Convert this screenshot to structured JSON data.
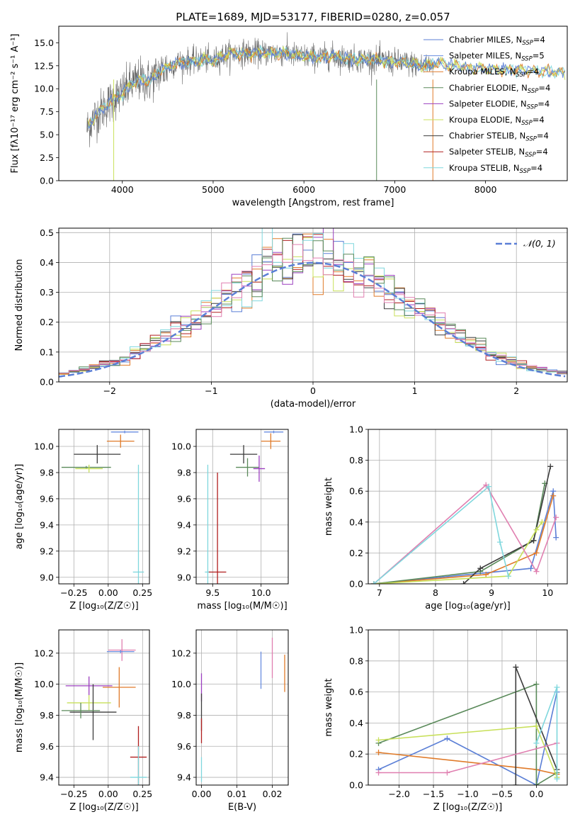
{
  "colors": {
    "chabrier_miles": "#5b7fd6",
    "salpeter_miles": "#6a8ee0",
    "kroupa_miles": "#e07b2a",
    "chabrier_elodie": "#5a8a5a",
    "salpeter_elodie": "#9b3fbf",
    "kroupa_elodie": "#c8e05a",
    "chabrier_stelib": "#3c3c3c",
    "salpeter_stelib": "#b01e1e",
    "kroupa_stelib": "#7fd7dd",
    "pink": "#e07fb0",
    "data_grey": "#707070"
  },
  "chart_data": [
    {
      "id": "spectrum",
      "type": "line",
      "title": "PLATE=1689, MJD=53177, FIBERID=0280, z=0.057",
      "xlabel": "wavelength [Angstrom, rest frame]",
      "ylabel": "Flux [fλ10⁻¹⁷ erg cm⁻² s⁻¹ A⁻¹]",
      "xlim": [
        3300,
        8900
      ],
      "ylim": [
        0,
        16.8
      ],
      "xticks": [
        4000,
        5000,
        6000,
        7000,
        8000
      ],
      "yticks": [
        0.0,
        2.5,
        5.0,
        7.5,
        10.0,
        12.5,
        15.0
      ],
      "grid": false,
      "legend_position": "top-right",
      "legend": [
        "Chabrier MILES, N_SSP=4",
        "Salpeter MILES, N_SSP=5",
        "Kroupa MILES, N_SSP=4",
        "Chabrier ELODIE, N_SSP=4",
        "Salpeter ELODIE, N_SSP=4",
        "Kroupa ELODIE, N_SSP=4",
        "Chabrier STELIB, N_SSP=4",
        "Salpeter STELIB, N_SSP=4",
        "Kroupa STELIB, N_SSP=4"
      ],
      "continuum": [
        [
          3600,
          5.5
        ],
        [
          3700,
          7.0
        ],
        [
          3800,
          8.0
        ],
        [
          3900,
          8.8
        ],
        [
          4000,
          9.5
        ],
        [
          4100,
          10.5
        ],
        [
          4200,
          11.0
        ],
        [
          4300,
          10.8
        ],
        [
          4400,
          11.8
        ],
        [
          4500,
          12.3
        ],
        [
          4600,
          12.8
        ],
        [
          4700,
          13.0
        ],
        [
          4800,
          13.0
        ],
        [
          4900,
          13.2
        ],
        [
          5000,
          13.0
        ],
        [
          5100,
          13.6
        ],
        [
          5200,
          13.8
        ],
        [
          5300,
          13.9
        ],
        [
          5400,
          13.9
        ],
        [
          5500,
          13.9
        ],
        [
          5600,
          13.9
        ],
        [
          5700,
          13.9
        ],
        [
          5800,
          13.9
        ],
        [
          5900,
          13.6
        ],
        [
          6000,
          13.5
        ],
        [
          6100,
          13.5
        ],
        [
          6200,
          13.4
        ],
        [
          6300,
          13.6
        ],
        [
          6400,
          13.4
        ],
        [
          6500,
          13.3
        ],
        [
          6600,
          13.2
        ],
        [
          6700,
          13.2
        ],
        [
          6800,
          13.1
        ],
        [
          6900,
          13.0
        ],
        [
          7000,
          12.9
        ],
        [
          7100,
          12.8
        ],
        [
          7200,
          12.7
        ],
        [
          7300,
          12.5
        ],
        [
          7400,
          12.6
        ],
        [
          7500,
          12.8
        ],
        [
          7600,
          12.4
        ],
        [
          7700,
          12.5
        ],
        [
          7800,
          12.3
        ],
        [
          7900,
          12.2
        ],
        [
          8000,
          12.2
        ],
        [
          8100,
          12.1
        ],
        [
          8200,
          12.1
        ],
        [
          8300,
          12.0
        ],
        [
          8400,
          12.0
        ],
        [
          8500,
          12.0
        ],
        [
          8600,
          11.9
        ],
        [
          8700,
          11.9
        ],
        [
          8800,
          11.8
        ]
      ]
    },
    {
      "id": "residuals",
      "type": "line",
      "xlabel": "(data-model)/error",
      "ylabel": "Normed distribution",
      "xlim": [
        -2.5,
        2.5
      ],
      "ylim": [
        0,
        0.515
      ],
      "xticks": [
        -2,
        -1,
        0,
        1,
        2
      ],
      "yticks": [
        0.0,
        0.1,
        0.2,
        0.3,
        0.4,
        0.5
      ],
      "grid": true,
      "legend_position": "top-right",
      "legend": [
        "𝒩(0, 1)"
      ],
      "gaussian": {
        "mean": 0,
        "sigma": 1
      }
    },
    {
      "id": "age_vs_Z",
      "type": "scatter",
      "xlabel": "Z [log₁₀(Z/Z☉)]",
      "ylabel": "age  [log₁₀(age/yr)]",
      "xlim": [
        -0.36,
        0.3
      ],
      "ylim": [
        8.95,
        10.13
      ],
      "xticks": [
        -0.25,
        0.0,
        0.25
      ],
      "xticklabels": [
        "−0.25",
        "0.00",
        "0.25"
      ],
      "yticks": [
        9.0,
        9.2,
        9.4,
        9.6,
        9.8,
        10.0
      ],
      "grid": true,
      "points": [
        {
          "series": "salpeter_miles",
          "x": 0.12,
          "y": 10.11,
          "xerr": 0.1,
          "yerr": 0.01
        },
        {
          "series": "kroupa_miles",
          "x": 0.09,
          "y": 10.04,
          "xerr": 0.1,
          "yerr": 0.05
        },
        {
          "series": "chabrier_stelib",
          "x": -0.08,
          "y": 9.94,
          "xerr": 0.17,
          "yerr": 0.07
        },
        {
          "series": "chabrier_elodie",
          "x": -0.16,
          "y": 9.84,
          "xerr": 0.18,
          "yerr": 0.01
        },
        {
          "series": "kroupa_elodie",
          "x": -0.14,
          "y": 9.83,
          "xerr": 0.1,
          "yerr": 0.03
        },
        {
          "series": "kroupa_stelib",
          "x": 0.22,
          "y": 9.04,
          "xerr": 0.04,
          "yerr": 0.82
        }
      ]
    },
    {
      "id": "age_vs_mass",
      "type": "scatter",
      "xlabel": "mass [log₁₀(M/M☉)]",
      "xlim": [
        9.33,
        10.28
      ],
      "ylim": [
        8.95,
        10.13
      ],
      "xticks": [
        9.5,
        10.0
      ],
      "xticklabels": [
        "9.5",
        "10.0"
      ],
      "yticks": [
        9.0,
        9.2,
        9.4,
        9.6,
        9.8,
        10.0
      ],
      "grid": true,
      "points": [
        {
          "series": "salpeter_miles",
          "x": 10.13,
          "y": 10.11,
          "xerr": 0.1,
          "yerr": 0.01
        },
        {
          "series": "kroupa_miles",
          "x": 10.1,
          "y": 10.04,
          "xerr": 0.1,
          "yerr": 0.06
        },
        {
          "series": "chabrier_stelib",
          "x": 9.82,
          "y": 9.94,
          "xerr": 0.14,
          "yerr": 0.07
        },
        {
          "series": "chabrier_elodie",
          "x": 9.86,
          "y": 9.84,
          "xerr": 0.12,
          "yerr": 0.07
        },
        {
          "series": "salpeter_elodie",
          "x": 9.98,
          "y": 9.83,
          "xerr": 0.06,
          "yerr": 0.1
        },
        {
          "series": "kroupa_stelib",
          "x": 9.45,
          "y": 9.04,
          "xerr": 0.03,
          "yerr": 0.82
        },
        {
          "series": "salpeter_stelib",
          "x": 9.55,
          "y": 9.04,
          "xerr": 0.09,
          "yerr": 0.76
        }
      ]
    },
    {
      "id": "massweight_vs_age",
      "type": "line",
      "xlabel": "age  [log₁₀(age/yr)]",
      "ylabel": "mass weight",
      "xlim": [
        6.8,
        10.35
      ],
      "ylim": [
        0,
        1.0
      ],
      "xticks": [
        7,
        8,
        9,
        10
      ],
      "yticks": [
        0.0,
        0.2,
        0.4,
        0.6,
        0.8,
        1.0
      ],
      "grid": true,
      "series": [
        {
          "key": "chabrier_miles",
          "x": [
            6.9,
            9.7,
            10.1,
            10.15
          ],
          "y": [
            0.0,
            0.1,
            0.6,
            0.3
          ]
        },
        {
          "key": "kroupa_miles",
          "x": [
            6.9,
            8.9,
            9.8,
            10.1
          ],
          "y": [
            0.0,
            0.06,
            0.2,
            0.57
          ]
        },
        {
          "key": "chabrier_elodie",
          "x": [
            6.9,
            8.8,
            9.75,
            9.95
          ],
          "y": [
            0.0,
            0.08,
            0.28,
            0.65
          ]
        },
        {
          "key": "chabrier_stelib",
          "x": [
            8.5,
            8.8,
            9.75,
            10.05
          ],
          "y": [
            0.0,
            0.1,
            0.28,
            0.76
          ]
        },
        {
          "key": "kroupa_elodie",
          "x": [
            6.9,
            9.3,
            9.8,
            9.9
          ],
          "y": [
            0.0,
            0.05,
            0.35,
            0.4
          ]
        },
        {
          "key": "pink",
          "x": [
            6.9,
            8.9,
            9.8,
            10.15
          ],
          "y": [
            0.0,
            0.64,
            0.08,
            0.43
          ]
        },
        {
          "key": "kroupa_stelib",
          "x": [
            6.9,
            8.95,
            9.15,
            9.3
          ],
          "y": [
            0.0,
            0.63,
            0.27,
            0.05
          ]
        }
      ]
    },
    {
      "id": "mass_vs_Z",
      "type": "scatter",
      "xlabel": "Z [log₁₀(Z/Z☉)]",
      "ylabel": "mass [log₁₀(M/M☉)]",
      "xlim": [
        -0.36,
        0.3
      ],
      "ylim": [
        9.35,
        10.35
      ],
      "xticks": [
        -0.25,
        0.0,
        0.25
      ],
      "xticklabels": [
        "−0.25",
        "0.00",
        "0.25"
      ],
      "yticks": [
        9.4,
        9.6,
        9.8,
        10.0,
        10.2
      ],
      "grid": true,
      "points": [
        {
          "series": "pink",
          "x": 0.1,
          "y": 10.22,
          "xerr": 0.1,
          "yerr": 0.07
        },
        {
          "series": "salpeter_miles",
          "x": 0.09,
          "y": 10.21,
          "xerr": 0.1,
          "yerr": 0.01
        },
        {
          "series": "salpeter_elodie",
          "x": -0.14,
          "y": 9.99,
          "xerr": 0.17,
          "yerr": 0.06
        },
        {
          "series": "kroupa_miles",
          "x": 0.08,
          "y": 9.98,
          "xerr": 0.12,
          "yerr": 0.13
        },
        {
          "series": "kroupa_elodie",
          "x": -0.14,
          "y": 9.88,
          "xerr": 0.16,
          "yerr": 0.05
        },
        {
          "series": "chabrier_stelib",
          "x": -0.11,
          "y": 9.82,
          "xerr": 0.17,
          "yerr": 0.18
        },
        {
          "series": "chabrier_elodie",
          "x": -0.2,
          "y": 9.83,
          "xerr": 0.14,
          "yerr": 0.05
        },
        {
          "series": "salpeter_stelib",
          "x": 0.22,
          "y": 9.53,
          "xerr": 0.06,
          "yerr": 0.2
        },
        {
          "series": "kroupa_stelib",
          "x": 0.22,
          "y": 9.4,
          "xerr": 0.06,
          "yerr": 0.2
        }
      ]
    },
    {
      "id": "mass_vs_EBV",
      "type": "scatter",
      "xlabel": "E(B-V)",
      "xlim": [
        -0.0015,
        0.0245
      ],
      "ylim": [
        9.35,
        10.35
      ],
      "xticks": [
        0.0,
        0.01,
        0.02
      ],
      "xticklabels": [
        "0.00",
        "0.01",
        "0.02"
      ],
      "yticks": [
        9.4,
        9.6,
        9.8,
        10.0,
        10.2
      ],
      "grid": true,
      "points": [
        {
          "series": "pink",
          "x": 0.02,
          "y": 10.17,
          "xerr": 0,
          "yerr": 0.13
        },
        {
          "series": "kroupa_miles",
          "x": 0.0235,
          "y": 10.07,
          "xerr": 0,
          "yerr": 0.12
        },
        {
          "series": "salpeter_miles",
          "x": 0.0168,
          "y": 10.09,
          "xerr": 0,
          "yerr": 0.12
        },
        {
          "series": "salpeter_elodie",
          "x": 0.0,
          "y": 9.98,
          "xerr": 0,
          "yerr": 0.09
        },
        {
          "series": "chabrier_stelib",
          "x": 0.0,
          "y": 9.82,
          "xerr": 0,
          "yerr": 0.12
        },
        {
          "series": "salpeter_stelib",
          "x": 0.0,
          "y": 9.7,
          "xerr": 0,
          "yerr": 0.08
        },
        {
          "series": "kroupa_stelib",
          "x": 0.0,
          "y": 9.45,
          "xerr": 0,
          "yerr": 0.08
        }
      ]
    },
    {
      "id": "massweight_vs_Z",
      "type": "line",
      "xlabel": "Z [log₁₀(Z/Z☉)]",
      "ylabel": "mass weight",
      "xlim": [
        -2.45,
        0.45
      ],
      "ylim": [
        0,
        1.0
      ],
      "xticks": [
        -2.0,
        -1.5,
        -1.0,
        -0.5,
        0.0
      ],
      "xticklabels": [
        "−2.0",
        "−1.5",
        "−1.0",
        "−0.5",
        "0.0"
      ],
      "yticks": [
        0.0,
        0.2,
        0.4,
        0.6,
        0.8,
        1.0
      ],
      "grid": true,
      "series": [
        {
          "key": "chabrier_miles",
          "x": [
            -2.3,
            -1.3,
            0.0,
            0.3
          ],
          "y": [
            0.1,
            0.3,
            0.0,
            0.6
          ]
        },
        {
          "key": "kroupa_miles",
          "x": [
            -2.3,
            0.0,
            0.3
          ],
          "y": [
            0.21,
            0.1,
            0.07
          ]
        },
        {
          "key": "chabrier_elodie",
          "x": [
            -2.3,
            0.0,
            0.0,
            0.3
          ],
          "y": [
            0.27,
            0.65,
            0.0,
            0.08
          ]
        },
        {
          "key": "chabrier_stelib",
          "x": [
            -0.3,
            -0.3,
            0.3
          ],
          "y": [
            0.0,
            0.76,
            0.1
          ]
        },
        {
          "key": "kroupa_elodie",
          "x": [
            -2.3,
            0.0,
            0.3
          ],
          "y": [
            0.29,
            0.38,
            0.05
          ]
        },
        {
          "key": "pink",
          "x": [
            -2.3,
            -1.3,
            0.3
          ],
          "y": [
            0.08,
            0.08,
            0.27
          ]
        },
        {
          "key": "kroupa_stelib",
          "x": [
            0.0,
            0.3,
            0.3
          ],
          "y": [
            0.27,
            0.63,
            0.04
          ]
        }
      ]
    }
  ]
}
